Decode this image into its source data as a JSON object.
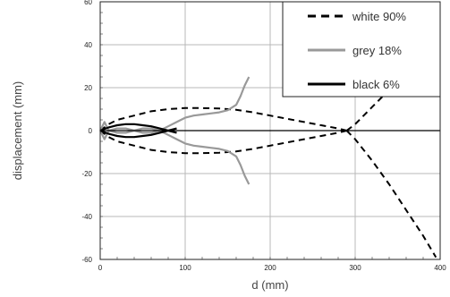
{
  "chart_data": {
    "type": "line",
    "xlabel": "d (mm)",
    "ylabel": "displacement (mm)",
    "xlim": [
      0,
      400
    ],
    "ylim": [
      -60,
      60
    ],
    "x_ticks": [
      0,
      100,
      200,
      300,
      400
    ],
    "y_ticks": [
      60,
      40,
      20,
      0,
      -20,
      -40,
      -60
    ],
    "grid": true,
    "legend_position": "top-right",
    "series": [
      {
        "name": "white 90%",
        "color": "#000000",
        "style": "dashed",
        "segments": [
          {
            "x": [
              0,
              10,
              20,
              40,
              60,
              80,
              100,
              120,
              140,
              160,
              180,
              200,
              220,
              240,
              260,
              280,
              290
            ],
            "y": [
              0,
              3,
              5,
              7,
              9,
              10,
              10.5,
              10.5,
              10.3,
              9.7,
              8.5,
              7,
              5.5,
              4,
              2.5,
              1,
              0
            ]
          },
          {
            "x": [
              0,
              10,
              20,
              40,
              60,
              80,
              100,
              120,
              140,
              160,
              180,
              200,
              220,
              240,
              260,
              280,
              290
            ],
            "y": [
              0,
              -3,
              -5,
              -7,
              -9,
              -10,
              -10.5,
              -10.5,
              -10.3,
              -9.7,
              -8.5,
              -7,
              -5.5,
              -4,
              -2.5,
              -1,
              0
            ]
          },
          {
            "x": [
              290,
              300,
              310,
              320,
              330,
              340
            ],
            "y": [
              0,
              3,
              7,
              11,
              15,
              19
            ]
          },
          {
            "x": [
              290,
              300,
              320,
              340,
              360,
              380,
              395
            ],
            "y": [
              0,
              -4,
              -14,
              -25,
              -37,
              -49,
              -59
            ]
          }
        ]
      },
      {
        "name": "grey 18%",
        "color": "#999999",
        "style": "solid",
        "segments": [
          {
            "x": [
              0,
              5,
              10
            ],
            "y": [
              0,
              4,
              0
            ]
          },
          {
            "x": [
              0,
              5,
              10
            ],
            "y": [
              0,
              -4,
              0
            ]
          },
          {
            "x": [
              10,
              20,
              30,
              40,
              50,
              60,
              70
            ],
            "y": [
              0,
              1,
              1,
              0,
              1,
              1,
              0
            ]
          },
          {
            "x": [
              10,
              20,
              30,
              40,
              50,
              60,
              70
            ],
            "y": [
              0,
              -1,
              -1,
              0,
              -1,
              -1,
              0
            ]
          },
          {
            "x": [
              70,
              80,
              90,
              100,
              110,
              120,
              130,
              140,
              150,
              160,
              165,
              170,
              175
            ],
            "y": [
              0,
              2,
              4,
              6,
              7,
              7.5,
              8,
              8.5,
              9.5,
              12,
              16,
              21,
              25
            ]
          },
          {
            "x": [
              70,
              80,
              90,
              100,
              110,
              120,
              130,
              140,
              150,
              160,
              165,
              170,
              175
            ],
            "y": [
              0,
              -2,
              -4,
              -6,
              -7,
              -7.5,
              -8,
              -8.5,
              -9.5,
              -12,
              -16,
              -21,
              -25
            ]
          }
        ]
      },
      {
        "name": "black 6%",
        "color": "#000000",
        "style": "solid",
        "segments": [
          {
            "x": [
              0,
              400
            ],
            "y": [
              0,
              0
            ]
          },
          {
            "x": [
              0,
              10,
              20,
              30,
              40,
              50,
              60,
              70,
              80,
              90
            ],
            "y": [
              0,
              1.5,
              2.5,
              3,
              3,
              2.5,
              2,
              1,
              0,
              -1
            ]
          },
          {
            "x": [
              0,
              10,
              20,
              30,
              40,
              50,
              60,
              70,
              80,
              90
            ],
            "y": [
              0,
              -1.5,
              -2.5,
              -3,
              -3,
              -2.5,
              -2,
              -1,
              0,
              1
            ]
          }
        ]
      }
    ]
  }
}
